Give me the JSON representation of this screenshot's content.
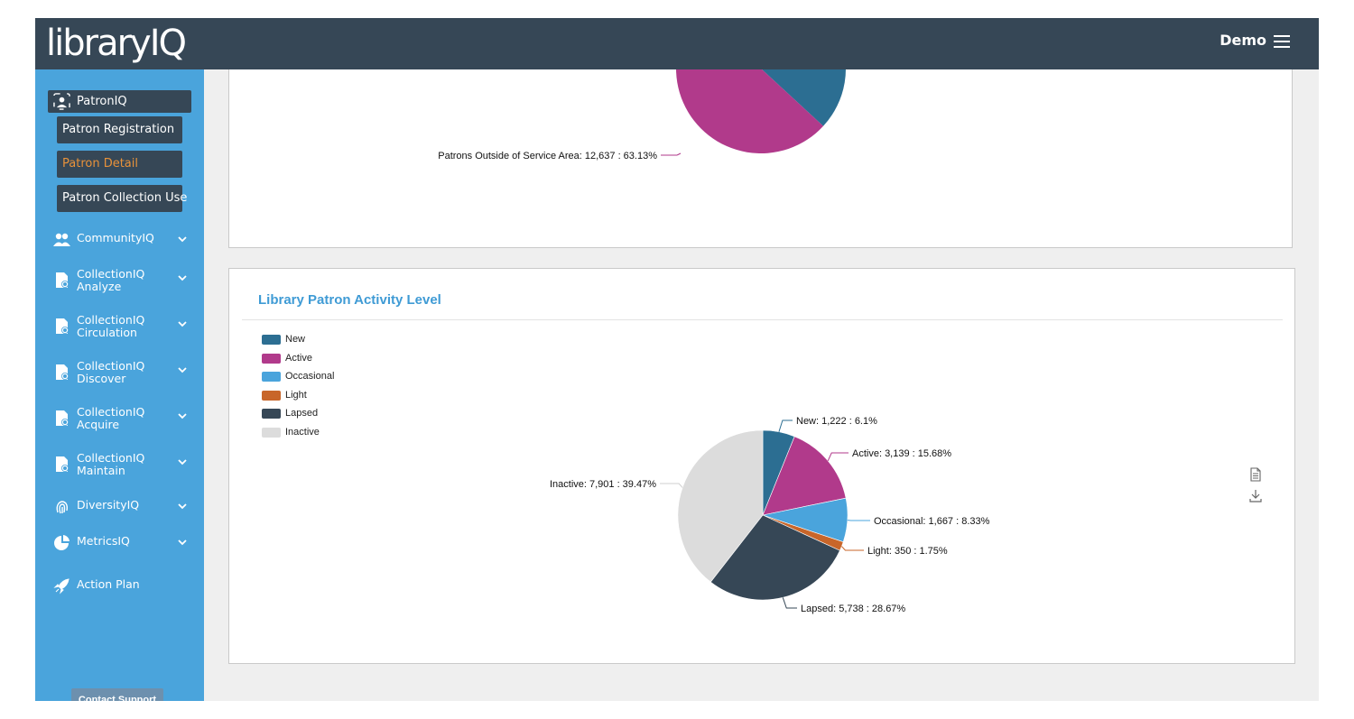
{
  "header": {
    "logo_text": "libraryIQ",
    "user_label": "Demo"
  },
  "sidebar": {
    "section": "PatronIQ",
    "subitems": [
      "Patron Registration",
      "Patron Detail",
      "Patron Collection Use"
    ],
    "active_subitem": "Patron Detail",
    "items": [
      {
        "line1": "CommunityIQ",
        "line2": "",
        "icon": "people-icon"
      },
      {
        "line1": "CollectionIQ",
        "line2": "Analyze",
        "icon": "analyze-doc-icon"
      },
      {
        "line1": "CollectionIQ",
        "line2": "Circulation",
        "icon": "circulation-doc-icon"
      },
      {
        "line1": "CollectionIQ",
        "line2": "Discover",
        "icon": "discover-doc-icon"
      },
      {
        "line1": "CollectionIQ",
        "line2": "Acquire",
        "icon": "acquire-doc-icon"
      },
      {
        "line1": "CollectionIQ",
        "line2": "Maintain",
        "icon": "maintain-doc-icon"
      },
      {
        "line1": "DiversityIQ",
        "line2": "",
        "icon": "fingerprint-icon"
      },
      {
        "line1": "MetricsIQ",
        "line2": "",
        "icon": "pie-chart-icon"
      },
      {
        "line1": "Action Plan",
        "line2": "",
        "icon": "rocket-icon"
      }
    ],
    "support_label": "Contact Support"
  },
  "colors": {
    "header_bg": "#364756",
    "sidebar_bg": "#4aa4dc",
    "accent": "#3f9bd5",
    "active_text": "#e8923a"
  },
  "chart_data": [
    {
      "type": "pie",
      "title": "",
      "partial": true,
      "slices": [
        {
          "label": "Patrons Outside of Service Area",
          "value": 12637,
          "percent": 63.13,
          "color": "#b13a8b"
        },
        {
          "label": "",
          "value": null,
          "percent": 36.87,
          "color": "#2c6e92"
        }
      ],
      "data_labels": [
        "Patrons Outside of Service Area: 12,637 : 63.13%"
      ]
    },
    {
      "type": "pie",
      "title": "Library Patron Activity Level",
      "legend_position": "top-left",
      "slices": [
        {
          "label": "New",
          "value": 1222,
          "percent": 6.1,
          "color": "#2c6e92",
          "data_label": "New: 1,222 : 6.1%"
        },
        {
          "label": "Active",
          "value": 3139,
          "percent": 15.68,
          "color": "#b13a8b",
          "data_label": "Active: 3,139 : 15.68%"
        },
        {
          "label": "Occasional",
          "value": 1667,
          "percent": 8.33,
          "color": "#4aa4dc",
          "data_label": "Occasional: 1,667 : 8.33%"
        },
        {
          "label": "Light",
          "value": 350,
          "percent": 1.75,
          "color": "#c8662a",
          "data_label": "Light: 350 : 1.75%"
        },
        {
          "label": "Lapsed",
          "value": 5738,
          "percent": 28.67,
          "color": "#364756",
          "data_label": "Lapsed: 5,738 : 28.67%"
        },
        {
          "label": "Inactive",
          "value": 7901,
          "percent": 39.47,
          "color": "#dcdcdc",
          "data_label": "Inactive: 7,901 : 39.47%"
        }
      ]
    }
  ]
}
